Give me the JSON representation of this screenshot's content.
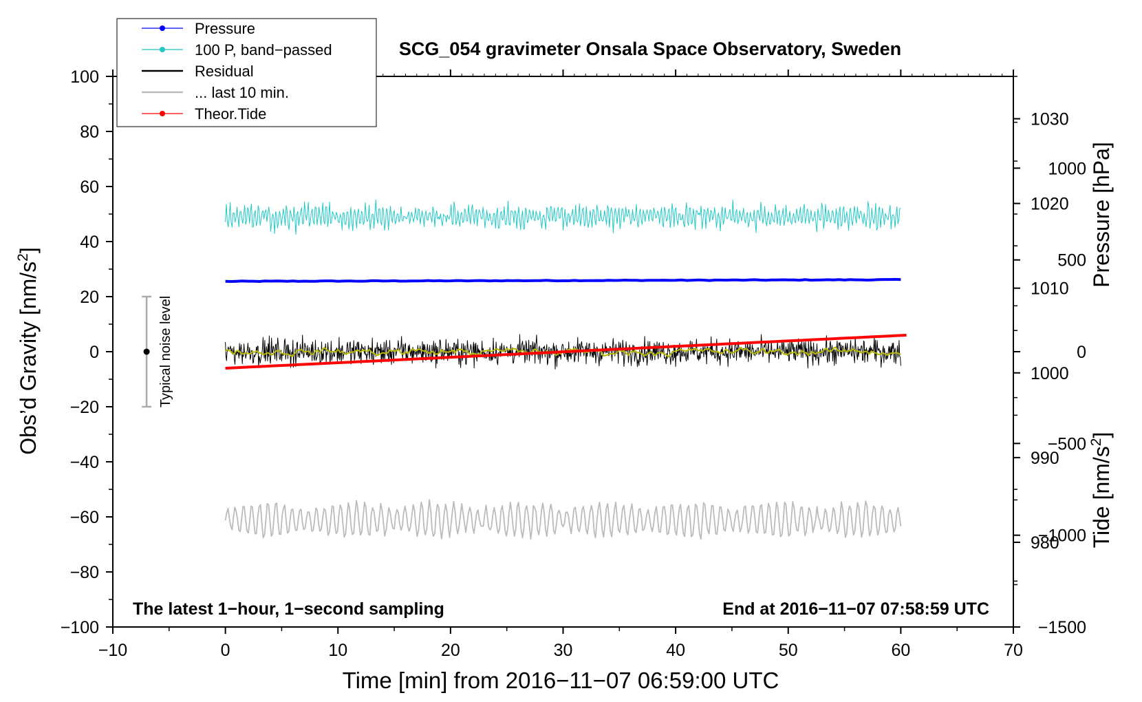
{
  "chart_data": {
    "type": "line",
    "title": "SCG_054 gravimeter Onsala Space Observatory, Sweden",
    "xlabel": "Time [min] from 2016−11−07 06:59:00 UTC",
    "ylabel_left": "Obs’d Gravity [nm/s",
    "ylabel_left_sup": "2",
    "ylabel_left_end": "]",
    "ylabel_right_top": "Pressure [hPa]",
    "ylabel_right_bottom": "Tide [nm/s",
    "ylabel_right_bottom_sup": "2",
    "ylabel_right_bottom_end": "]",
    "xlim": [
      -10,
      70
    ],
    "ylim_left": [
      -100,
      100
    ],
    "ylim_pressure": [
      970,
      1035
    ],
    "ylim_tide": [
      -1500,
      1500
    ],
    "x_ticks": [
      "−10",
      "0",
      "10",
      "20",
      "30",
      "40",
      "50",
      "60",
      "70"
    ],
    "x_tick_values": [
      -10,
      0,
      10,
      20,
      30,
      40,
      50,
      60,
      70
    ],
    "y_left_ticks": [
      "−100",
      "−80",
      "−60",
      "−40",
      "−20",
      "0",
      "20",
      "40",
      "60",
      "80",
      "100"
    ],
    "y_left_tick_values": [
      -100,
      -80,
      -60,
      -40,
      -20,
      0,
      20,
      40,
      60,
      80,
      100
    ],
    "y_pressure_ticks": [
      "980",
      "990",
      "1000",
      "1010",
      "1020",
      "1030"
    ],
    "y_pressure_tick_values": [
      980,
      990,
      1000,
      1010,
      1020,
      1030
    ],
    "y_tide_ticks": [
      "−1500",
      "−1000",
      "−500",
      "0",
      "500",
      "1000"
    ],
    "y_tide_tick_values": [
      -1500,
      -1000,
      -500,
      0,
      500,
      1000
    ],
    "legend": [
      {
        "label": "Pressure",
        "color": "#0000ff",
        "marker": true
      },
      {
        "label": "100 P, band−passed",
        "color": "#20c8c8",
        "marker": true
      },
      {
        "label": "Residual",
        "color": "#000000",
        "marker": false
      },
      {
        "label": "... last 10 min.",
        "color": "#bbbbbb",
        "marker": false
      },
      {
        "label": "Theor.Tide",
        "color": "#ff0000",
        "marker": true
      }
    ],
    "legend_position": "top-left",
    "annotation_left": "The latest 1−hour, 1−second sampling",
    "annotation_right": "End at 2016−11−07 07:58:59 UTC",
    "noise_bar_label": "Typical noise level",
    "noise_bar": {
      "x": -7,
      "center": 0,
      "half_range": 20
    },
    "series": [
      {
        "name": "Pressure",
        "axis": "pressure",
        "color": "#0000ff",
        "x_start": 0,
        "x_end": 60,
        "value_start": 1010.8,
        "value_end": 1011.0
      },
      {
        "name": "100 P, band−passed",
        "axis": "left",
        "color": "#20c8c8",
        "x_start": 0,
        "x_end": 60,
        "center": 49,
        "amplitude": 6
      },
      {
        "name": "Residual",
        "axis": "left",
        "color": "#000000",
        "x_start": 0,
        "x_end": 60,
        "center": 0,
        "amplitude": 6
      },
      {
        "name": "Residual smoothed",
        "axis": "left",
        "color": "#b8b800",
        "x_start": 0,
        "x_end": 60,
        "center": 0,
        "amplitude": 1.5
      },
      {
        "name": "... last 10 min.",
        "axis": "left",
        "color": "#bbbbbb",
        "x_start": 0,
        "x_end": 60,
        "center": -61,
        "amplitude": 6
      },
      {
        "name": "Theor.Tide",
        "axis": "tide",
        "color": "#ff0000",
        "x_start": 0,
        "x_end": 60.5,
        "value_start": -90,
        "value_end": 90
      }
    ],
    "grid": false
  }
}
